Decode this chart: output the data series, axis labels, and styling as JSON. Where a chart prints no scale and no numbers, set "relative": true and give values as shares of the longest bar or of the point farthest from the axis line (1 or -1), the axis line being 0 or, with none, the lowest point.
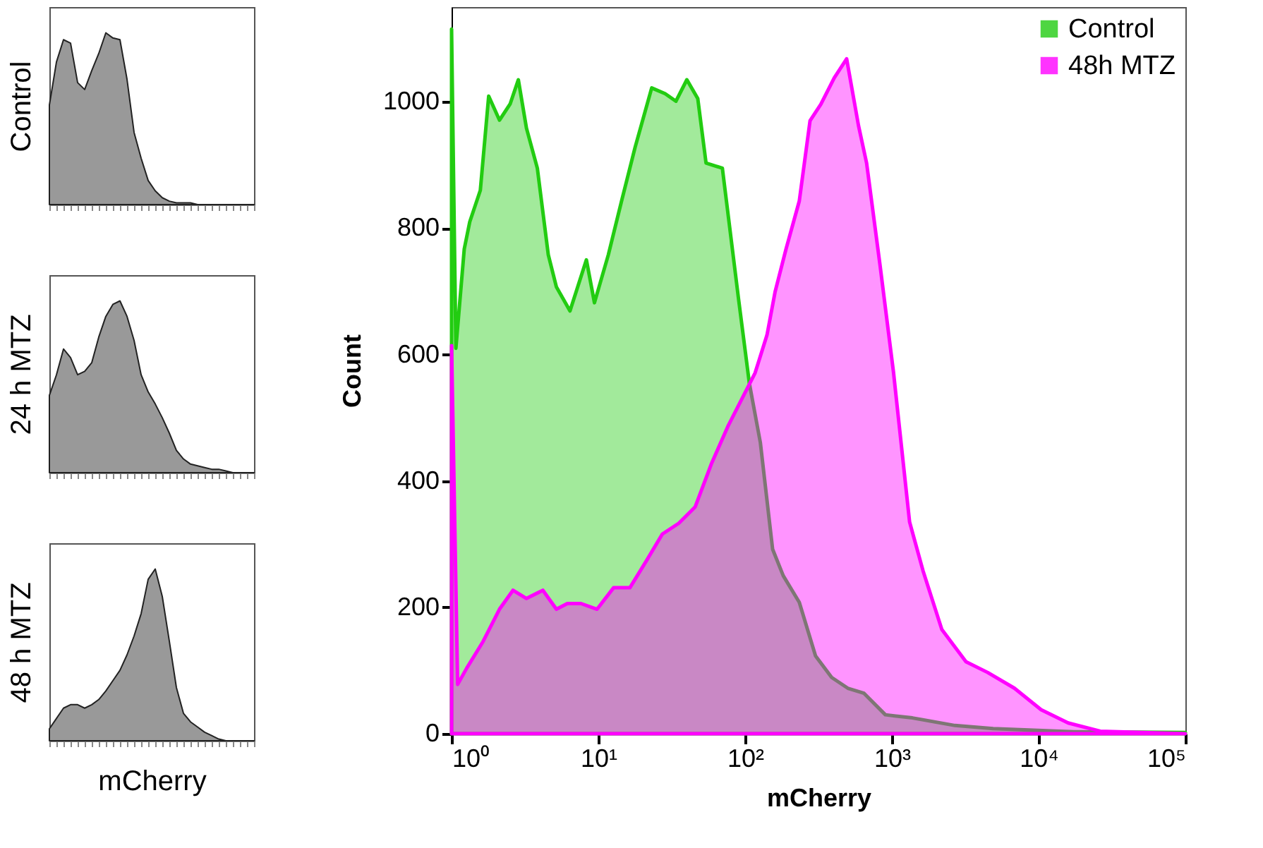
{
  "chart_data": [
    {
      "type": "area",
      "relative": true,
      "ylabel": "Control",
      "tick_labels": false,
      "categories": [
        null,
        null,
        null,
        null,
        null,
        null,
        null,
        null,
        null,
        null,
        null,
        null,
        null,
        null,
        null,
        null,
        null,
        null,
        null,
        null,
        null,
        null,
        null,
        null,
        null,
        null,
        null,
        null,
        null,
        null
      ],
      "series": [
        {
          "color": "#999999",
          "values": [
            0.58,
            0.83,
            0.96,
            0.94,
            0.71,
            0.67,
            0.78,
            0.88,
            1.0,
            0.97,
            0.96,
            0.73,
            0.42,
            0.27,
            0.14,
            0.08,
            0.04,
            0.02,
            0.01,
            0.01,
            0.01,
            0,
            0,
            0,
            0,
            0,
            0,
            0,
            0,
            0
          ]
        }
      ]
    },
    {
      "type": "area",
      "relative": true,
      "ylabel": "24 h MTZ",
      "tick_labels": false,
      "categories": [
        null,
        null,
        null,
        null,
        null,
        null,
        null,
        null,
        null,
        null,
        null,
        null,
        null,
        null,
        null,
        null,
        null,
        null,
        null,
        null,
        null,
        null,
        null,
        null,
        null,
        null,
        null,
        null,
        null,
        null
      ],
      "series": [
        {
          "color": "#999999",
          "values": [
            0.45,
            0.57,
            0.72,
            0.67,
            0.57,
            0.59,
            0.64,
            0.79,
            0.91,
            0.98,
            1.0,
            0.91,
            0.77,
            0.57,
            0.47,
            0.4,
            0.32,
            0.23,
            0.13,
            0.08,
            0.05,
            0.04,
            0.03,
            0.02,
            0.02,
            0.01,
            0,
            0,
            0,
            0
          ]
        }
      ]
    },
    {
      "type": "area",
      "relative": true,
      "ylabel": "48 h MTZ",
      "xlabel": "mCherry",
      "tick_labels": false,
      "categories": [
        null,
        null,
        null,
        null,
        null,
        null,
        null,
        null,
        null,
        null,
        null,
        null,
        null,
        null,
        null,
        null,
        null,
        null,
        null,
        null,
        null,
        null,
        null,
        null,
        null,
        null,
        null,
        null,
        null,
        null
      ],
      "series": [
        {
          "color": "#999999",
          "values": [
            0.07,
            0.13,
            0.19,
            0.21,
            0.21,
            0.19,
            0.21,
            0.24,
            0.29,
            0.35,
            0.41,
            0.5,
            0.61,
            0.74,
            0.94,
            1.0,
            0.84,
            0.58,
            0.31,
            0.16,
            0.11,
            0.08,
            0.05,
            0.03,
            0.01,
            0,
            0,
            0,
            0,
            0
          ]
        }
      ]
    },
    {
      "type": "area",
      "xlabel": "mCherry",
      "ylabel": "Count",
      "log": "x",
      "legend": "top right",
      "xlim": [
        1,
        100000
      ],
      "xticks": [
        {
          "value": 1,
          "label": "10⁰"
        },
        {
          "value": 10,
          "label": "10¹"
        },
        {
          "value": 100,
          "label": "10²"
        },
        {
          "value": 1000,
          "label": "10³"
        },
        {
          "value": 10000,
          "label": "10⁴"
        },
        {
          "value": 100000,
          "label": "10⁵"
        }
      ],
      "ylim": [
        0,
        1150
      ],
      "yticks": [
        0,
        200,
        400,
        600,
        800,
        1000
      ],
      "series": [
        {
          "name": "Control",
          "color": "#22cc11",
          "x": [
            1,
            1.07,
            1.22,
            1.33,
            1.57,
            1.79,
            2.12,
            2.51,
            2.85,
            3.24,
            3.84,
            4.56,
            5.18,
            6.41,
            8.29,
            9.41,
            11.7,
            14.4,
            17.8,
            23.1,
            28.5,
            33.8,
            40.1,
            47.6,
            54.2,
            70,
            90,
            107,
            127,
            154,
            182,
            234,
            302,
            389,
            501,
            646,
            903,
            1380,
            2690,
            4900,
            17400,
            100000
          ],
          "values": [
            1115,
            610,
            767,
            810,
            860,
            1009,
            971,
            997,
            1035,
            958,
            895,
            758,
            707,
            669,
            750,
            682,
            758,
            843,
            928,
            1022,
            1013,
            1001,
            1035,
            1005,
            903,
            895,
            690,
            554,
            461,
            292,
            250,
            208,
            123,
            89,
            72,
            64,
            30,
            25,
            13,
            8,
            3,
            2
          ]
        },
        {
          "name": "48h MTZ",
          "color": "#ff00ff",
          "x": [
            1,
            1.1,
            1.27,
            1.64,
            2.12,
            2.62,
            3.24,
            4.19,
            5.18,
            6.15,
            7.62,
            9.8,
            12.7,
            16.4,
            21.3,
            27.3,
            35.3,
            45.7,
            58.9,
            76.2,
            98.5,
            117,
            141,
            160,
            190,
            234,
            277,
            328,
            405,
            492,
            593,
            673,
            830,
            1026,
            1321,
            1630,
            2190,
            3200,
            4490,
            6840,
            10400,
            15900,
            26300,
            100000
          ],
          "values": [
            614,
            78,
            104,
            146,
            197,
            227,
            214,
            227,
            197,
            206,
            206,
            197,
            231,
            231,
            274,
            316,
            333,
            359,
            427,
            486,
            537,
            571,
            631,
            699,
            767,
            843,
            970,
            996,
            1038,
            1068,
            962,
            903,
            742,
            572,
            335,
            258,
            165,
            114,
            97,
            72,
            38,
            17,
            4,
            0
          ]
        }
      ]
    }
  ]
}
